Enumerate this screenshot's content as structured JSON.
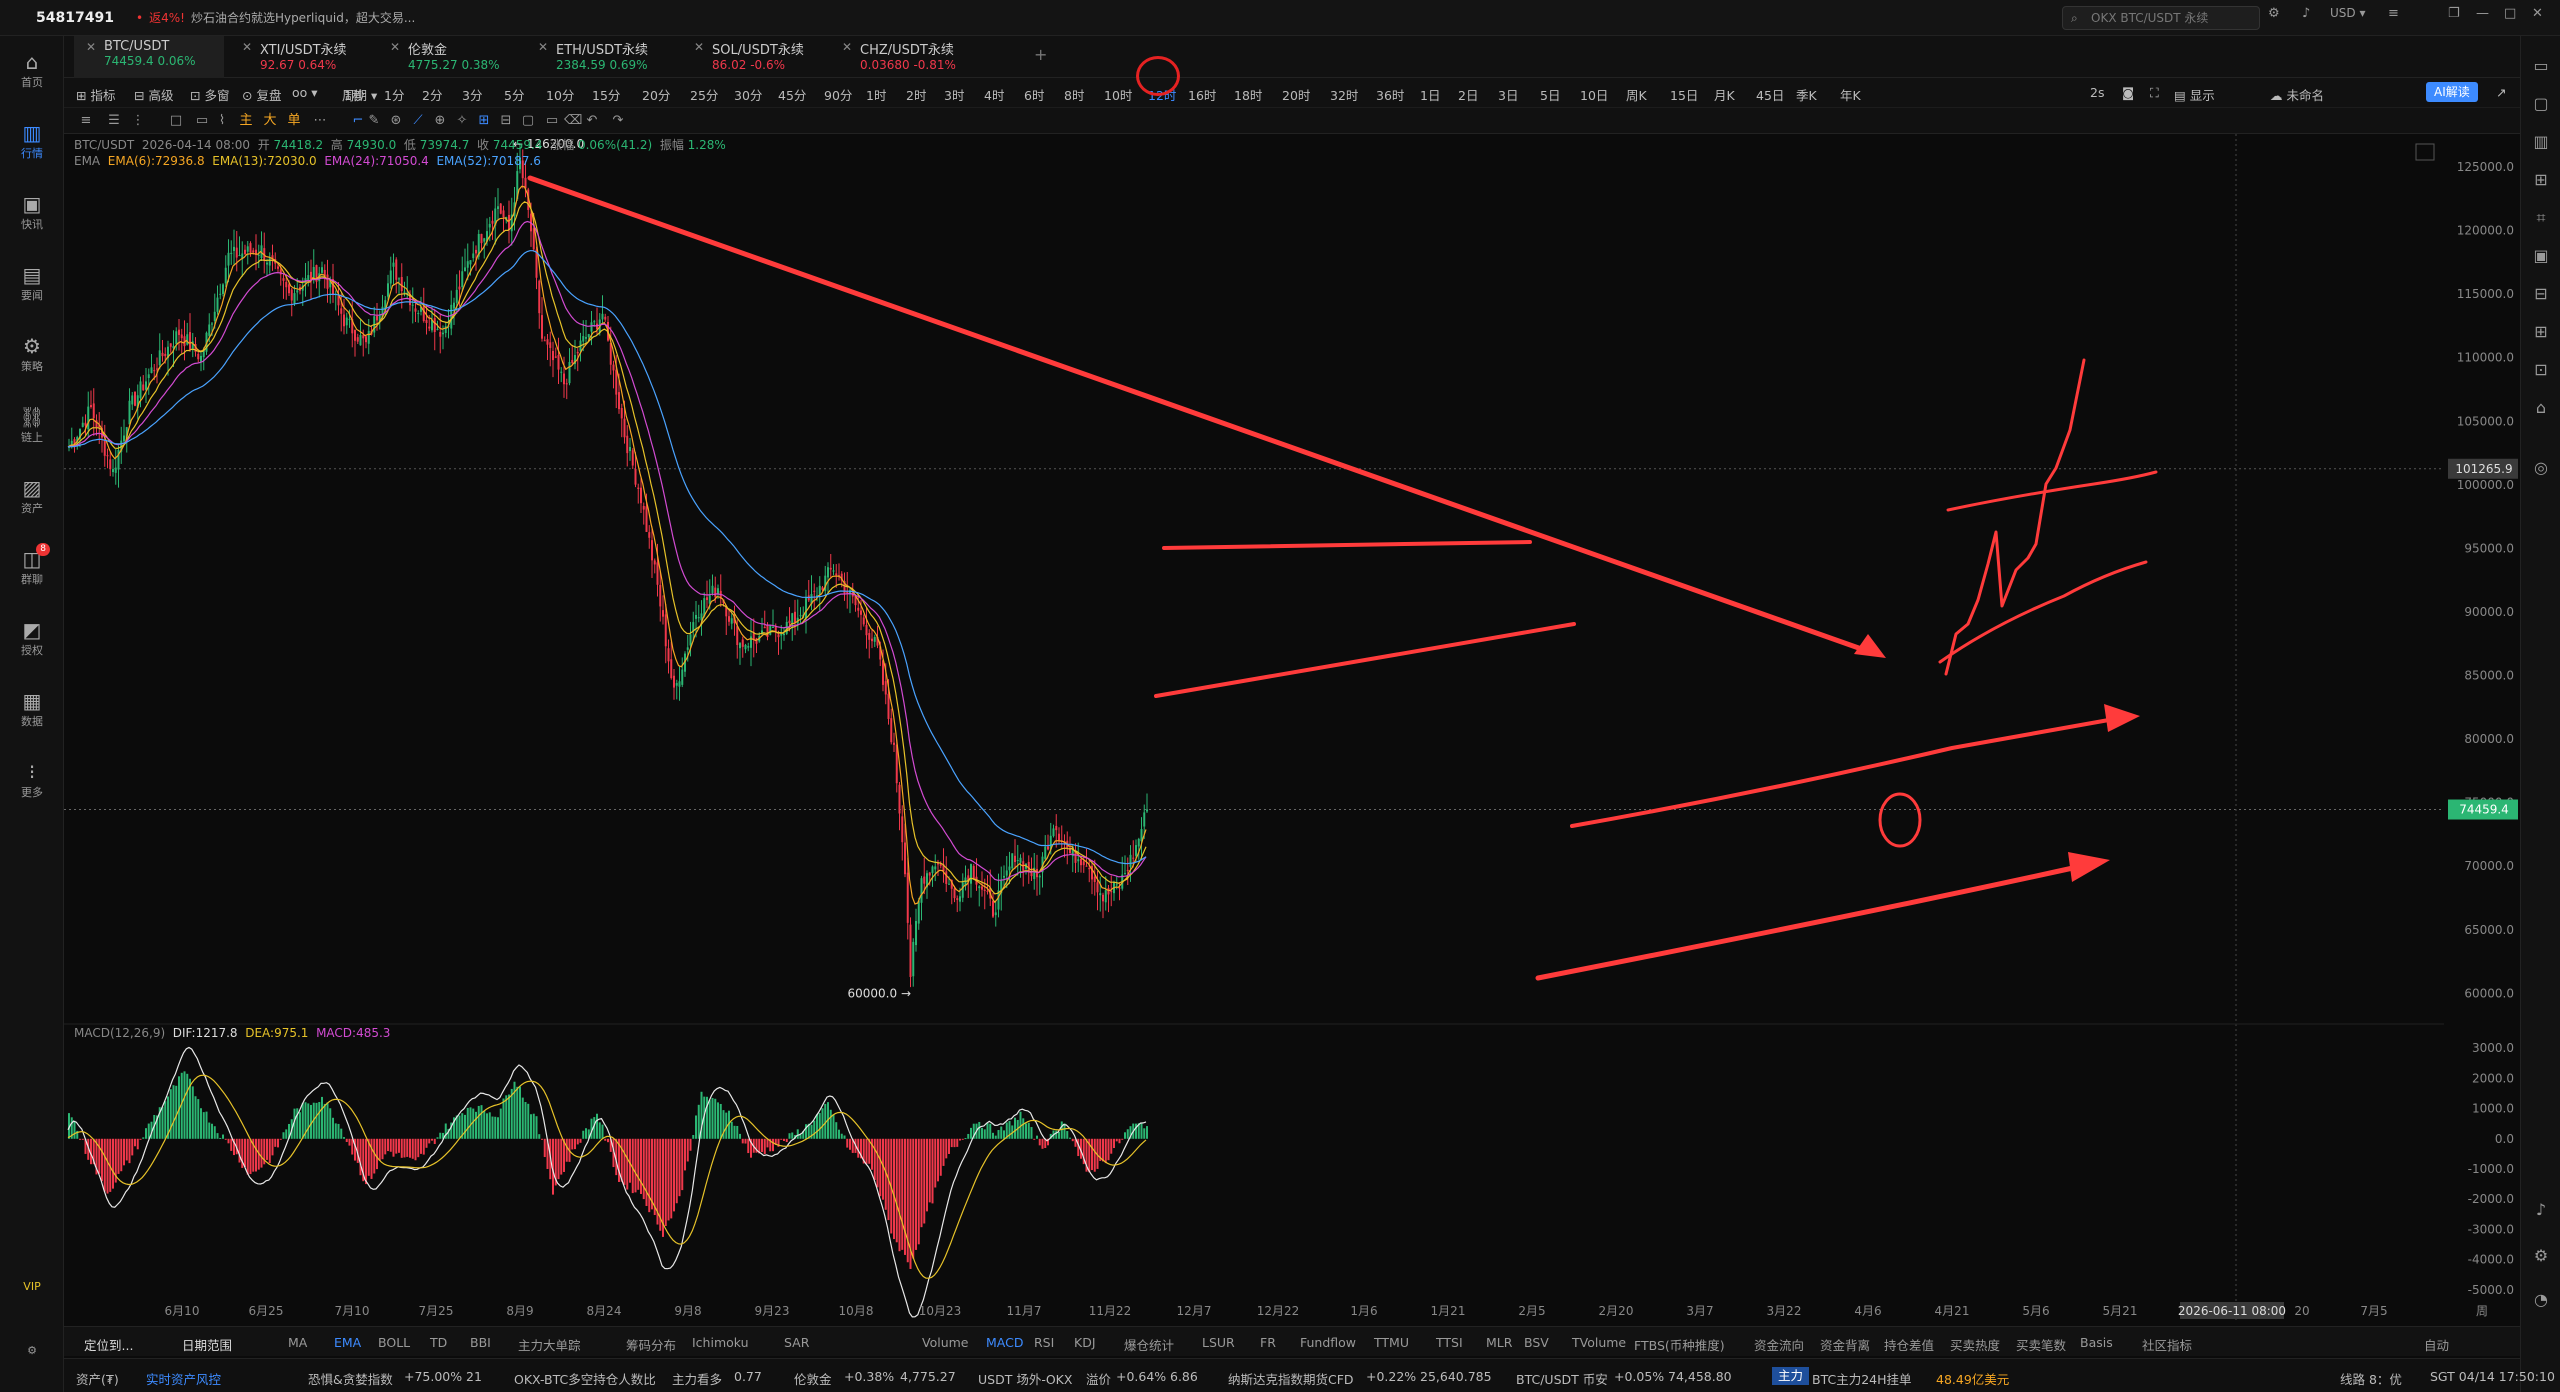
{
  "top": {
    "account": "54817491",
    "news_prefix": "•",
    "news_pct": "返4%!",
    "news": "炒石油合约就选Hyperliquid，超大交易...",
    "search": "OKX BTC/USDT 永续",
    "currency": "USD"
  },
  "sidebar": [
    {
      "label": "首页",
      "icon": "home-icon"
    },
    {
      "label": "行情",
      "icon": "chart-icon"
    },
    {
      "label": "快讯",
      "icon": "news-icon"
    },
    {
      "label": "要闻",
      "icon": "doc-icon"
    },
    {
      "label": "策略",
      "icon": "strategy-icon"
    },
    {
      "label": "链上",
      "icon": "chain-icon"
    },
    {
      "label": "资产",
      "icon": "wallet-icon"
    },
    {
      "label": "群聊",
      "icon": "chat-icon",
      "badge": "8"
    },
    {
      "label": "授权",
      "icon": "auth-icon"
    },
    {
      "label": "数据",
      "icon": "data-icon"
    },
    {
      "label": "更多",
      "icon": "more-icon"
    }
  ],
  "sidebar_bottom": "VIP",
  "tabs": [
    {
      "name": "BTC/USDT",
      "price": "74459.4",
      "chg": "0.06%",
      "dir": "up"
    },
    {
      "name": "XTI/USDT永续",
      "price": "92.67",
      "chg": "0.64%",
      "dir": "dn"
    },
    {
      "name": "伦敦金",
      "price": "4775.27",
      "chg": "0.38%",
      "dir": "up"
    },
    {
      "name": "ETH/USDT永续",
      "price": "2384.59",
      "chg": "0.69%",
      "dir": "up"
    },
    {
      "name": "SOL/USDT永续",
      "price": "86.02",
      "chg": "-0.6%",
      "dir": "dn"
    },
    {
      "name": "CHZ/USDT永续",
      "price": "0.03680",
      "chg": "-0.81%",
      "dir": "dn"
    }
  ],
  "add_tab": "+",
  "toolbar": {
    "left": [
      "指标",
      "高级",
      "多窗",
      "复盘"
    ],
    "period": "周期",
    "intervals": [
      "1秒",
      "1分",
      "2分",
      "3分",
      "5分",
      "10分",
      "15分",
      "20分",
      "25分",
      "30分",
      "45分",
      "90分",
      "1时",
      "2时",
      "3时",
      "4时",
      "6时",
      "8时",
      "10时",
      "12时",
      "16时",
      "18时",
      "20时",
      "32时",
      "36时",
      "1日",
      "2日",
      "3日",
      "5日",
      "10日",
      "周K",
      "15日",
      "月K",
      "45日",
      "季K",
      "年K"
    ],
    "active": "12时",
    "right": [
      "2s",
      "显示",
      "未命名",
      "AI解读"
    ]
  },
  "legend": {
    "symbol": "BTC/USDT",
    "time": "2026-04-14 08:00",
    "o_lbl": "开",
    "o": "74418.2",
    "h_lbl": "高",
    "h": "74930.0",
    "l_lbl": "低",
    "l": "73974.7",
    "c_lbl": "收",
    "c": "74459.4",
    "chg_lbl": "涨幅",
    "chg": "0.06%(41.2)",
    "amp_lbl": "振幅",
    "amp": "1.28%",
    "ema_title": "EMA",
    "ema": [
      {
        "t": "EMA(6):72936.8",
        "color": "#f5a623"
      },
      {
        "t": "EMA(13):72030.0",
        "color": "#e6c229"
      },
      {
        "t": "EMA(24):71050.4",
        "color": "#d24bd2"
      },
      {
        "t": "EMA(52):70187.6",
        "color": "#4aa3ff"
      }
    ],
    "macd_title": "MACD(12,26,9)",
    "dif": "DIF:1217.8",
    "dea": "DEA:975.1",
    "macd": "MACD:485.3"
  },
  "chart_data": [
    {
      "type": "candlestick",
      "title": "BTC/USDT",
      "yticks": [
        125000,
        120000,
        115000,
        110000,
        105000,
        100000,
        95000,
        90000,
        85000,
        80000,
        75000,
        70000,
        65000,
        60000
      ],
      "ylim": [
        56800,
        127600
      ],
      "xticks": [
        "6月10",
        "6月25",
        "7月10",
        "7月25",
        "8月9",
        "8月24",
        "9月8",
        "9月23",
        "10月8",
        "10月23",
        "11月7",
        "11月22",
        "12月7",
        "12月22",
        "1月6",
        "1月21",
        "2月5",
        "2月20",
        "3月7",
        "3月22",
        "4月6",
        "4月21",
        "5月6",
        "5月21",
        "2026-06-11 08:00",
        "20",
        "7月5",
        "周"
      ],
      "anchors": [
        {
          "x": 0,
          "y": 103000
        },
        {
          "x": 8,
          "y": 106000
        },
        {
          "x": 16,
          "y": 101000
        },
        {
          "x": 22,
          "y": 106000
        },
        {
          "x": 30,
          "y": 109000
        },
        {
          "x": 40,
          "y": 112000
        },
        {
          "x": 48,
          "y": 110000
        },
        {
          "x": 58,
          "y": 118000
        },
        {
          "x": 70,
          "y": 118500
        },
        {
          "x": 80,
          "y": 115000
        },
        {
          "x": 92,
          "y": 117000
        },
        {
          "x": 100,
          "y": 113000
        },
        {
          "x": 108,
          "y": 111000
        },
        {
          "x": 118,
          "y": 117000
        },
        {
          "x": 126,
          "y": 114000
        },
        {
          "x": 136,
          "y": 112000
        },
        {
          "x": 146,
          "y": 118000
        },
        {
          "x": 156,
          "y": 122000
        },
        {
          "x": 160,
          "y": 120000
        },
        {
          "x": 164,
          "y": 125500
        },
        {
          "x": 168,
          "y": 120000
        },
        {
          "x": 172,
          "y": 111500
        },
        {
          "x": 180,
          "y": 108000
        },
        {
          "x": 186,
          "y": 111000
        },
        {
          "x": 194,
          "y": 113500
        },
        {
          "x": 202,
          "y": 104000
        },
        {
          "x": 208,
          "y": 99000
        },
        {
          "x": 214,
          "y": 92000
        },
        {
          "x": 220,
          "y": 83500
        },
        {
          "x": 228,
          "y": 90000
        },
        {
          "x": 236,
          "y": 92000
        },
        {
          "x": 244,
          "y": 87500
        },
        {
          "x": 252,
          "y": 88000
        },
        {
          "x": 262,
          "y": 89000
        },
        {
          "x": 270,
          "y": 91000
        },
        {
          "x": 278,
          "y": 93500
        },
        {
          "x": 286,
          "y": 90500
        },
        {
          "x": 294,
          "y": 87000
        },
        {
          "x": 300,
          "y": 79000
        },
        {
          "x": 304,
          "y": 70000
        },
        {
          "x": 306,
          "y": 61500
        },
        {
          "x": 310,
          "y": 69000
        },
        {
          "x": 316,
          "y": 70500
        },
        {
          "x": 322,
          "y": 67500
        },
        {
          "x": 328,
          "y": 70000
        },
        {
          "x": 336,
          "y": 66500
        },
        {
          "x": 344,
          "y": 71000
        },
        {
          "x": 352,
          "y": 69000
        },
        {
          "x": 358,
          "y": 73500
        },
        {
          "x": 364,
          "y": 71000
        },
        {
          "x": 370,
          "y": 70500
        },
        {
          "x": 376,
          "y": 67500
        },
        {
          "x": 382,
          "y": 68500
        },
        {
          "x": 388,
          "y": 71500
        },
        {
          "x": 392,
          "y": 74459.4
        }
      ],
      "bar_count": 393,
      "last": {
        "value": "74459.4",
        "y": 74459.4
      },
      "ref": {
        "value": "101265.9",
        "y": 101265.9
      },
      "high_label": "126200.0",
      "high": 126200,
      "low_label": "60000.0",
      "low": 60000,
      "ema": [
        "EMA(6)",
        "EMA(13)",
        "EMA(24)",
        "EMA(52)"
      ]
    },
    {
      "type": "bar+line",
      "title": "MACD(12,26,9)",
      "yticks": [
        "3000.0",
        "2000.0",
        "1000.0",
        "0.0",
        "-1000.0",
        "-2000.0",
        "-3000.0",
        "-4000.0",
        "-5000.0"
      ],
      "ylim": [
        -5800,
        3800
      ],
      "anchors": [
        {
          "x": 0,
          "y": 1000
        },
        {
          "x": 6,
          "y": -400
        },
        {
          "x": 14,
          "y": -1800
        },
        {
          "x": 22,
          "y": -700
        },
        {
          "x": 30,
          "y": 600
        },
        {
          "x": 42,
          "y": 2200
        },
        {
          "x": 50,
          "y": 800
        },
        {
          "x": 58,
          "y": -200
        },
        {
          "x": 66,
          "y": -1200
        },
        {
          "x": 74,
          "y": -600
        },
        {
          "x": 82,
          "y": 900
        },
        {
          "x": 92,
          "y": 1400
        },
        {
          "x": 100,
          "y": 200
        },
        {
          "x": 108,
          "y": -1500
        },
        {
          "x": 116,
          "y": -400
        },
        {
          "x": 126,
          "y": -800
        },
        {
          "x": 136,
          "y": 300
        },
        {
          "x": 146,
          "y": 1100
        },
        {
          "x": 156,
          "y": 800
        },
        {
          "x": 162,
          "y": 2000
        },
        {
          "x": 170,
          "y": 600
        },
        {
          "x": 176,
          "y": -1700
        },
        {
          "x": 184,
          "y": -300
        },
        {
          "x": 192,
          "y": 900
        },
        {
          "x": 200,
          "y": -1400
        },
        {
          "x": 208,
          "y": -1800
        },
        {
          "x": 216,
          "y": -3100
        },
        {
          "x": 222,
          "y": -2000
        },
        {
          "x": 230,
          "y": 1500
        },
        {
          "x": 240,
          "y": 900
        },
        {
          "x": 248,
          "y": -600
        },
        {
          "x": 258,
          "y": -200
        },
        {
          "x": 268,
          "y": 400
        },
        {
          "x": 276,
          "y": 1100
        },
        {
          "x": 284,
          "y": -400
        },
        {
          "x": 292,
          "y": -1000
        },
        {
          "x": 300,
          "y": -3300
        },
        {
          "x": 306,
          "y": -4200
        },
        {
          "x": 312,
          "y": -2500
        },
        {
          "x": 320,
          "y": -500
        },
        {
          "x": 330,
          "y": 600
        },
        {
          "x": 338,
          "y": 200
        },
        {
          "x": 346,
          "y": 800
        },
        {
          "x": 354,
          "y": -300
        },
        {
          "x": 362,
          "y": 600
        },
        {
          "x": 370,
          "y": -1200
        },
        {
          "x": 378,
          "y": -600
        },
        {
          "x": 386,
          "y": 400
        },
        {
          "x": 392,
          "y": 500
        }
      ]
    }
  ],
  "bottom_ind": [
    "定位到...",
    "日期范围",
    "MA",
    "EMA",
    "BOLL",
    "TD",
    "BBI",
    "主力大单踪",
    "筹码分布",
    "Ichimoku",
    "SAR",
    "Volume",
    "MACD",
    "RSI",
    "KDJ",
    "爆仓统计",
    "LSUR",
    "FR",
    "Fundflow",
    "TTMU",
    "TTSI",
    "MLR",
    "BSV",
    "TVolume",
    "FTBS(币种推度)",
    "资金流向",
    "资金背离",
    "持仓差值",
    "买卖热度",
    "买卖笔数",
    "Basis",
    "社区指标",
    "自动"
  ],
  "bottom_active": [
    "EMA",
    "MACD"
  ],
  "status": {
    "asset": "资产(₮)",
    "risk": "实时资产风控",
    "fear": "恐惧&贪婪指数",
    "fear_chg": "+75.00%",
    "fear_val": "21",
    "okx": "OKX-BTC多空持仓人数比",
    "okx_tag": "主力看多",
    "okx_val": "0.77",
    "gold": "伦敦金",
    "gold_chg": "+0.38%",
    "gold_val": "4,775.27",
    "usdt": "USDT 场外-OKX",
    "usdt_tag": "溢价",
    "usdt_chg": "+0.64%",
    "usdt_val": "6.86",
    "nq": "纳斯达克指数期货CFD",
    "nq_chg": "+0.22%",
    "nq_val": "25,640.785",
    "bn": "BTC/USDT 币安",
    "bn_chg": "+0.05%",
    "bn_val": "74,458.80",
    "main": "主力",
    "order": "BTC主力24H挂单",
    "order_val": "48.49亿美元",
    "line": "线路 8：优",
    "tz": "SGT 04/14 17:50:10"
  }
}
